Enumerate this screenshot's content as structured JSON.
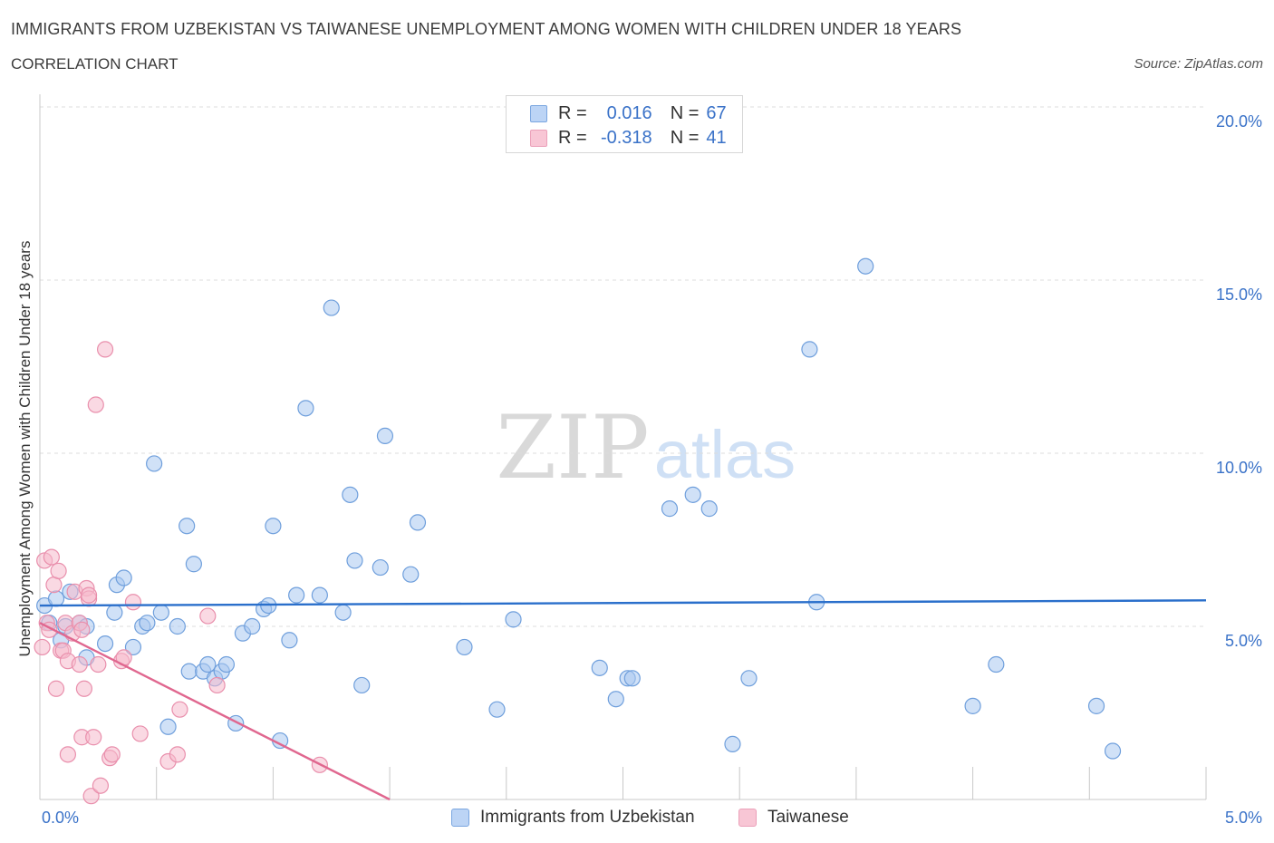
{
  "title": "IMMIGRANTS FROM UZBEKISTAN VS TAIWANESE UNEMPLOYMENT AMONG WOMEN WITH CHILDREN UNDER 18 YEARS",
  "subtitle": "CORRELATION CHART",
  "source": "Source: ZipAtlas.com",
  "watermark": {
    "zip": "ZIP",
    "atlas": "atlas"
  },
  "colors": {
    "blue_fill": "#a9c8f0",
    "blue_stroke": "#6f9fdc",
    "blue_line": "#2a6fcb",
    "pink_fill": "#f6b9cc",
    "pink_stroke": "#e98fac",
    "pink_line": "#e0678f",
    "tick_label": "#3a72c8",
    "grid": "#dcdcdc"
  },
  "legend_top": {
    "rows": [
      {
        "series": "uzbekistan",
        "r_label": "R =",
        "r_value": "0.016",
        "n_label": "N =",
        "n_value": "67"
      },
      {
        "series": "taiwanese",
        "r_label": "R =",
        "r_value": "-0.318",
        "n_label": "N =",
        "n_value": "41"
      }
    ]
  },
  "legend_bottom": [
    {
      "series": "uzbekistan",
      "label": "Immigrants from Uzbekistan"
    },
    {
      "series": "taiwanese",
      "label": "Taiwanese"
    }
  ],
  "chart_data": {
    "type": "scatter",
    "xlabel": "",
    "ylabel": "Unemployment Among Women with Children Under 18 years",
    "xlim": [
      0,
      5
    ],
    "ylim": [
      0,
      20
    ],
    "x_tick_labels": [
      {
        "value": 0,
        "label": "0.0%"
      },
      {
        "value": 5,
        "label": "5.0%"
      }
    ],
    "y_tick_labels": [
      {
        "value": 5,
        "label": "5.0%"
      },
      {
        "value": 10,
        "label": "10.0%"
      },
      {
        "value": 15,
        "label": "15.0%"
      },
      {
        "value": 20,
        "label": "20.0%"
      }
    ],
    "grid": true,
    "series": [
      {
        "name": "Immigrants from Uzbekistan",
        "key": "uzbekistan",
        "trend": {
          "x": [
            0,
            5
          ],
          "y": [
            5.6,
            5.75
          ]
        },
        "points": [
          [
            0.02,
            5.6
          ],
          [
            0.04,
            5.1
          ],
          [
            0.07,
            5.8
          ],
          [
            0.09,
            4.6
          ],
          [
            0.11,
            5.0
          ],
          [
            0.13,
            6.0
          ],
          [
            0.17,
            5.1
          ],
          [
            0.2,
            5.0
          ],
          [
            0.2,
            4.1
          ],
          [
            0.28,
            4.5
          ],
          [
            0.32,
            5.4
          ],
          [
            0.33,
            6.2
          ],
          [
            0.36,
            6.4
          ],
          [
            0.4,
            4.4
          ],
          [
            0.44,
            5.0
          ],
          [
            0.46,
            5.1
          ],
          [
            0.49,
            9.7
          ],
          [
            0.52,
            5.4
          ],
          [
            0.55,
            2.1
          ],
          [
            0.59,
            5.0
          ],
          [
            0.63,
            7.9
          ],
          [
            0.64,
            3.7
          ],
          [
            0.66,
            6.8
          ],
          [
            0.7,
            3.7
          ],
          [
            0.72,
            3.9
          ],
          [
            0.75,
            3.5
          ],
          [
            0.78,
            3.7
          ],
          [
            0.8,
            3.9
          ],
          [
            0.84,
            2.2
          ],
          [
            0.87,
            4.8
          ],
          [
            0.91,
            5.0
          ],
          [
            0.96,
            5.5
          ],
          [
            0.98,
            5.6
          ],
          [
            1.0,
            7.9
          ],
          [
            1.03,
            1.7
          ],
          [
            1.07,
            4.6
          ],
          [
            1.1,
            5.9
          ],
          [
            1.14,
            11.3
          ],
          [
            1.2,
            5.9
          ],
          [
            1.25,
            14.2
          ],
          [
            1.3,
            5.4
          ],
          [
            1.33,
            8.8
          ],
          [
            1.35,
            6.9
          ],
          [
            1.38,
            3.3
          ],
          [
            1.46,
            6.7
          ],
          [
            1.48,
            10.5
          ],
          [
            1.59,
            6.5
          ],
          [
            1.62,
            8.0
          ],
          [
            1.82,
            4.4
          ],
          [
            1.96,
            2.6
          ],
          [
            2.03,
            5.2
          ],
          [
            2.4,
            3.8
          ],
          [
            2.47,
            2.9
          ],
          [
            2.52,
            3.5
          ],
          [
            2.54,
            3.5
          ],
          [
            2.7,
            8.4
          ],
          [
            2.8,
            8.8
          ],
          [
            2.87,
            8.4
          ],
          [
            2.97,
            1.6
          ],
          [
            3.04,
            3.5
          ],
          [
            3.3,
            13.0
          ],
          [
            3.33,
            5.7
          ],
          [
            3.54,
            15.4
          ],
          [
            4.0,
            2.7
          ],
          [
            4.1,
            3.9
          ],
          [
            4.53,
            2.7
          ],
          [
            4.6,
            1.4
          ]
        ]
      },
      {
        "name": "Taiwanese",
        "key": "taiwanese",
        "trend": {
          "x": [
            0,
            1.5
          ],
          "y": [
            5.1,
            0.0
          ]
        },
        "points": [
          [
            0.01,
            4.4
          ],
          [
            0.02,
            6.9
          ],
          [
            0.03,
            5.1
          ],
          [
            0.04,
            4.9
          ],
          [
            0.05,
            7.0
          ],
          [
            0.06,
            6.2
          ],
          [
            0.07,
            3.2
          ],
          [
            0.08,
            6.6
          ],
          [
            0.09,
            4.3
          ],
          [
            0.1,
            4.3
          ],
          [
            0.11,
            5.1
          ],
          [
            0.12,
            4.0
          ],
          [
            0.12,
            1.3
          ],
          [
            0.14,
            4.8
          ],
          [
            0.15,
            6.0
          ],
          [
            0.17,
            5.1
          ],
          [
            0.17,
            3.9
          ],
          [
            0.18,
            4.9
          ],
          [
            0.18,
            1.8
          ],
          [
            0.19,
            3.2
          ],
          [
            0.2,
            6.1
          ],
          [
            0.21,
            5.8
          ],
          [
            0.21,
            5.9
          ],
          [
            0.22,
            0.1
          ],
          [
            0.23,
            1.8
          ],
          [
            0.24,
            11.4
          ],
          [
            0.25,
            3.9
          ],
          [
            0.26,
            0.4
          ],
          [
            0.28,
            13.0
          ],
          [
            0.3,
            1.2
          ],
          [
            0.31,
            1.3
          ],
          [
            0.35,
            4.0
          ],
          [
            0.36,
            4.1
          ],
          [
            0.4,
            5.7
          ],
          [
            0.43,
            1.9
          ],
          [
            0.55,
            1.1
          ],
          [
            0.59,
            1.3
          ],
          [
            0.6,
            2.6
          ],
          [
            0.72,
            5.3
          ],
          [
            0.76,
            3.3
          ],
          [
            1.2,
            1.0
          ]
        ]
      }
    ]
  }
}
